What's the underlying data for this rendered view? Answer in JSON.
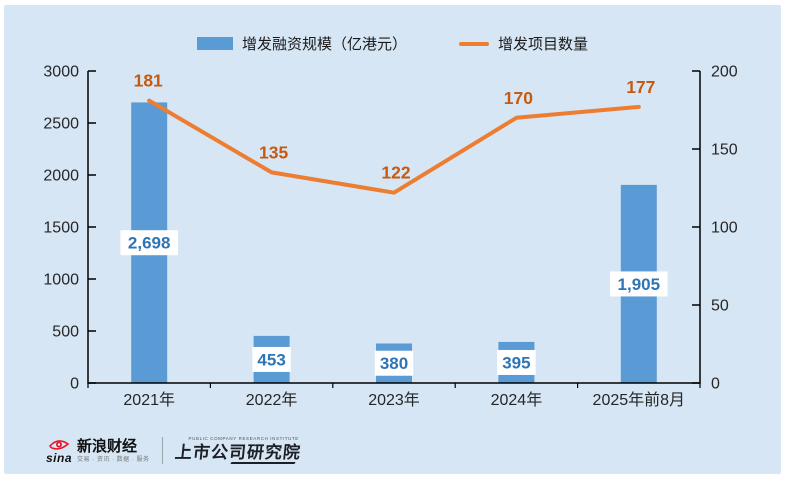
{
  "legend": [
    {
      "label": "增发融资规模（亿港元）",
      "swatch": "bar-swatch",
      "color": "#5b9bd5"
    },
    {
      "label": "增发项目数量",
      "swatch": "line-swatch",
      "color": "#ed7d31"
    }
  ],
  "chart_data": {
    "type": "combo",
    "categories": [
      "2021年",
      "2022年",
      "2023年",
      "2024年",
      "2025年前8月"
    ],
    "series": [
      {
        "name": "增发融资规模（亿港元）",
        "type": "bar",
        "axis": "left",
        "values": [
          2698,
          453,
          380,
          395,
          1905
        ],
        "labels": [
          "2,698",
          "453",
          "380",
          "395",
          "1,905"
        ],
        "color": "#5b9bd5",
        "label_color": "#2e75b6",
        "label_bg": "#ffffff"
      },
      {
        "name": "增发项目数量",
        "type": "line",
        "axis": "right",
        "values": [
          181,
          135,
          122,
          170,
          177
        ],
        "labels": [
          "181",
          "135",
          "122",
          "170",
          "177"
        ],
        "color": "#ed7d31",
        "label_color": "#c55a11"
      }
    ],
    "left_axis": {
      "min": 0,
      "max": 3000,
      "step": 500,
      "ticks": [
        "0",
        "500",
        "1000",
        "1500",
        "2000",
        "2500",
        "3000"
      ]
    },
    "right_axis": {
      "min": 0,
      "max": 200,
      "step": 50,
      "ticks": [
        "0",
        "50",
        "100",
        "150",
        "200"
      ]
    },
    "grid": false,
    "legend_position": "top",
    "axis_color": "#000000",
    "tick_label_color": "#262626",
    "panel_background": "#d7e6f4"
  },
  "footer": {
    "sina_word": "sina",
    "sina_brand": "新浪财经",
    "sina_tagline": "交易 · 资讯 · 数据 · 服务",
    "institute_en": "PUBLIC COMPANY RESEARCH INSTITUTE",
    "institute_name": "上市公司研究院"
  }
}
